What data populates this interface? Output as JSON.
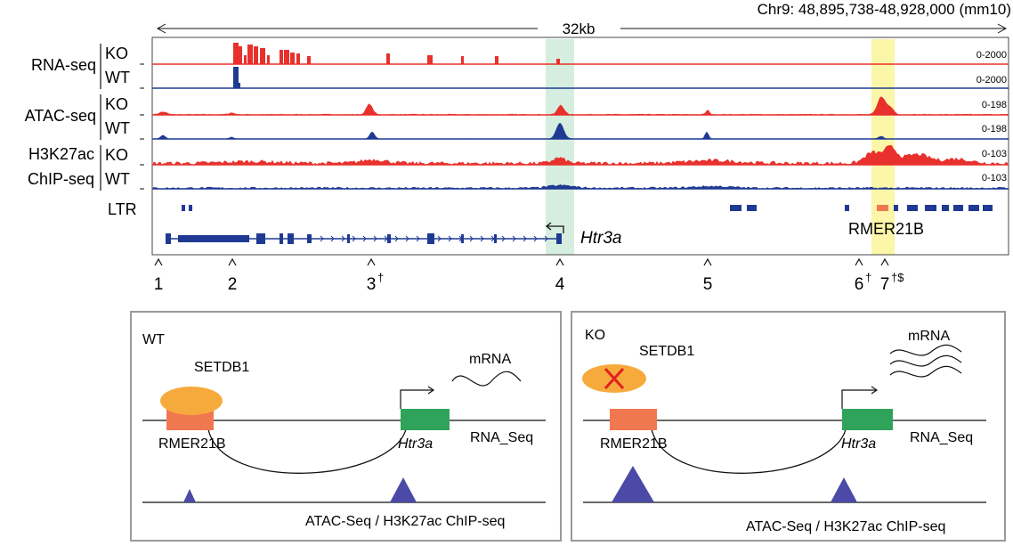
{
  "header": {
    "coords": "Chr9: 48,895,738-48,928,000 (mm10)",
    "span": "32kb"
  },
  "tracks": {
    "rna_seq": {
      "label": "RNA-seq",
      "ko": "KO",
      "wt": "WT",
      "ko_range": "0-2000",
      "wt_range": "0-2000"
    },
    "atac_seq": {
      "label": "ATAC-seq",
      "ko": "KO",
      "wt": "WT",
      "ko_range": "0-198",
      "wt_range": "0-198"
    },
    "h3k27ac": {
      "label1": "H3K27ac",
      "label2": "ChIP-seq",
      "ko": "KO",
      "wt": "WT",
      "ko_range": "0-103",
      "wt_range": "0-103"
    },
    "ltr": {
      "label": "LTR"
    }
  },
  "gene": {
    "name": "Htr3a",
    "ltr_name": "RMER21B"
  },
  "sites": [
    {
      "num": "1",
      "mark": ""
    },
    {
      "num": "2",
      "mark": ""
    },
    {
      "num": "3",
      "mark": "†"
    },
    {
      "num": "4",
      "mark": ""
    },
    {
      "num": "5",
      "mark": ""
    },
    {
      "num": "6",
      "mark": "†"
    },
    {
      "num": "7",
      "mark": "†$"
    }
  ],
  "panels": {
    "wt": {
      "condition": "WT",
      "protein": "SETDB1",
      "mrna": "mRNA",
      "element": "RMER21B",
      "gene": "Htr3a",
      "rna_label": "RNA_Seq",
      "bottom_label": "ATAC-Seq / H3K27ac ChIP-seq"
    },
    "ko": {
      "condition": "KO",
      "protein": "SETDB1",
      "mrna": "mRNA",
      "element": "RMER21B",
      "gene": "Htr3a",
      "rna_label": "RNA_Seq",
      "bottom_label": "ATAC-Seq / H3K27ac ChIP-seq"
    }
  },
  "colors": {
    "ko": "#e8302c",
    "wt": "#1f3a93",
    "highlight_green": "#d6eedf",
    "highlight_yellow": "#fbf6a8",
    "rmer": "#f07850",
    "setdb1": "#f7aa3c",
    "htr3a_box": "#2fa35a",
    "triangle": "#4b4aa6",
    "panel_border": "#9a9a9a"
  }
}
